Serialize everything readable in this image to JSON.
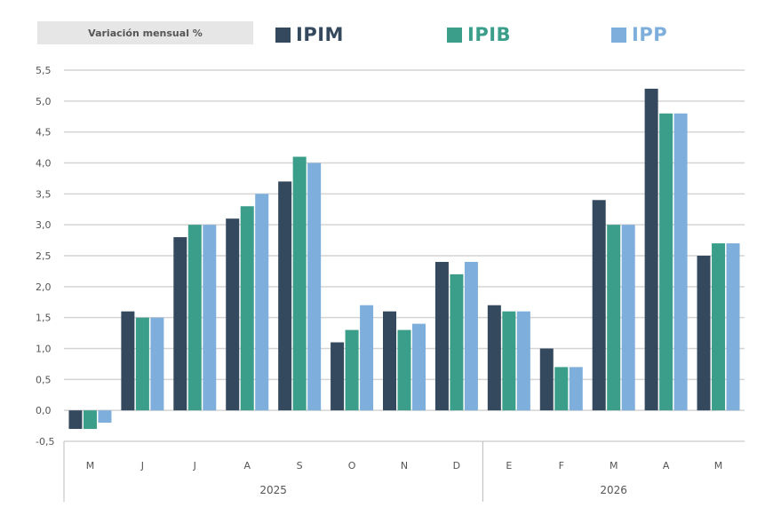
{
  "badge_label": "Variación mensual %",
  "colors": {
    "IPIM": "#34495e",
    "IPIB": "#3a9e8b",
    "IPP": "#7eaedb",
    "grid": "#d4d4d4",
    "text": "#555555"
  },
  "chart_data": {
    "type": "bar",
    "title": "",
    "xlabel": "",
    "ylabel": "",
    "ylim": [
      -0.5,
      5.5
    ],
    "yticks": [
      "-0,5",
      "0,0",
      "0,5",
      "1,0",
      "1,5",
      "2,0",
      "2,5",
      "3,0",
      "3,5",
      "4,0",
      "4,5",
      "5,0",
      "5,5"
    ],
    "grid": true,
    "legend_position": "top",
    "categories": [
      "M",
      "J",
      "J",
      "A",
      "S",
      "O",
      "N",
      "D",
      "E",
      "F",
      "M",
      "A",
      "M"
    ],
    "groups": [
      {
        "label": "2025",
        "count": 8
      },
      {
        "label": "2026",
        "count": 5
      }
    ],
    "series": [
      {
        "name": "IPIM",
        "values": [
          -0.3,
          1.6,
          2.8,
          3.1,
          3.7,
          1.1,
          1.6,
          2.4,
          1.7,
          1.0,
          3.4,
          5.2,
          2.5
        ]
      },
      {
        "name": "IPIB",
        "values": [
          -0.3,
          1.5,
          3.0,
          3.3,
          4.1,
          1.3,
          1.3,
          2.2,
          1.6,
          0.7,
          3.0,
          4.8,
          2.7
        ]
      },
      {
        "name": "IPP",
        "values": [
          -0.2,
          1.5,
          3.0,
          3.5,
          4.0,
          1.7,
          1.4,
          2.4,
          1.6,
          0.7,
          3.0,
          4.8,
          2.7
        ]
      }
    ]
  }
}
